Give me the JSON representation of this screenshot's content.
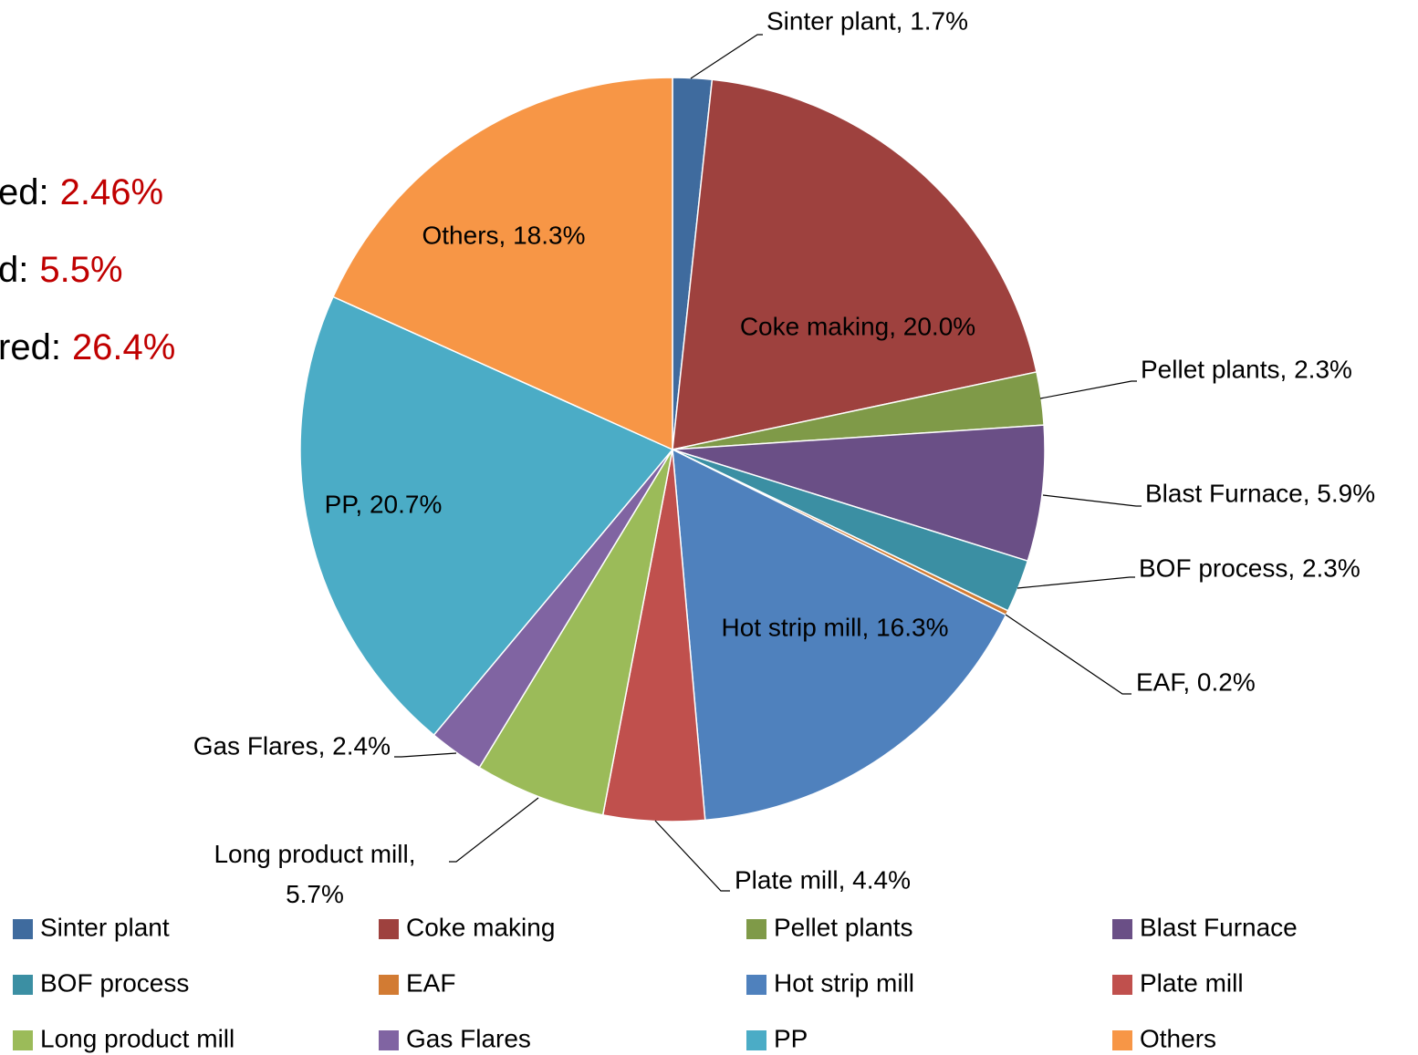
{
  "chart_data": {
    "type": "pie",
    "categories": [
      "Sinter plant",
      "Coke making",
      "Pellet plants",
      "Blast Furnace",
      "BOF process",
      "EAF",
      "Hot strip mill",
      "Plate mill",
      "Long product mill",
      "Gas Flares",
      "PP",
      "Others"
    ],
    "values": [
      1.7,
      20.0,
      2.3,
      5.9,
      2.3,
      0.2,
      16.3,
      4.4,
      5.7,
      2.4,
      20.7,
      18.3
    ],
    "value_labels": [
      "Sinter plant, 1.7%",
      "Coke making, 20.0%",
      "Pellet plants, 2.3%",
      "Blast Furnace, 5.9%",
      "BOF process, 2.3%",
      "EAF, 0.2%",
      "Hot strip mill, 16.3%",
      "Plate mill, 4.4%",
      "Long product mill, 5.7%",
      "Gas Flares, 2.4%",
      "PP, 20.7%",
      "Others, 18.3%"
    ],
    "colors": [
      "#3f6b9e",
      "#9e413e",
      "#7f9a48",
      "#6a4f86",
      "#3b8fa3",
      "#d27b33",
      "#4f81bd",
      "#c0504d",
      "#9bbb59",
      "#8064a2",
      "#4bacc6",
      "#f79646"
    ],
    "legend": "bottom",
    "annotations": [
      {
        "label": "ed:",
        "value": "2.46%"
      },
      {
        "label": "d:",
        "value": "5.5%"
      },
      {
        "label": "red:",
        "value": "26.4%"
      }
    ]
  }
}
